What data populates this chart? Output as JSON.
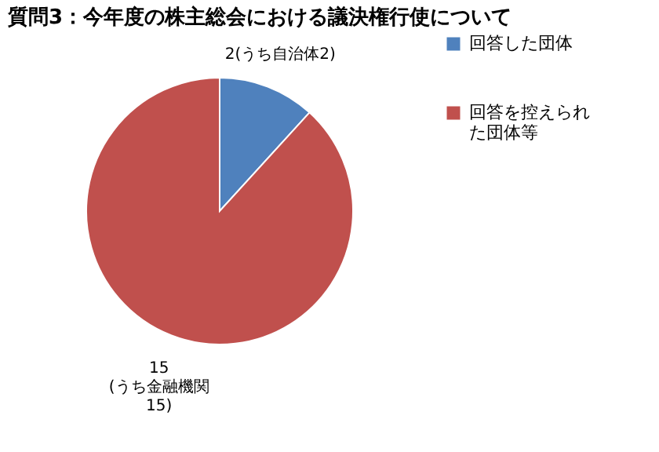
{
  "chart_data": {
    "type": "pie",
    "title": "質問3：今年度の株主総会における議決権行使について",
    "categories": [
      "回答した団体",
      "回答を控えられた団体等"
    ],
    "values": [
      2,
      15
    ],
    "colors": [
      "#4f81bd",
      "#c0504d"
    ],
    "value_labels": [
      "2(うち自治体2)",
      "15\n(うち金融機関\n15)"
    ],
    "legend": "right"
  }
}
